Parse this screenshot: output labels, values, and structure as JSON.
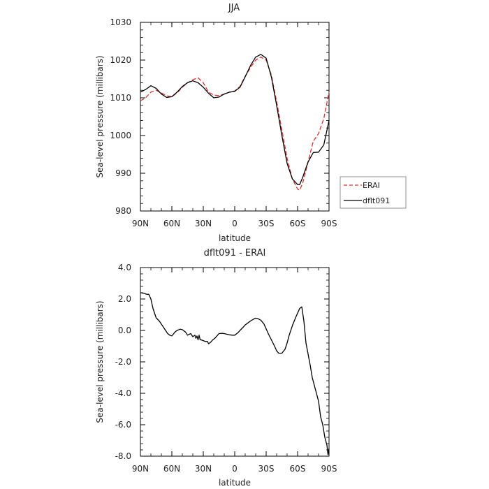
{
  "chart_data": [
    {
      "type": "line",
      "title": "JJA",
      "xlabel": "latitude",
      "ylabel": "Sea-level pressure (millibars)",
      "xlim": [
        90,
        -90
      ],
      "ylim": [
        980,
        1030
      ],
      "x_ticks": [
        90,
        60,
        30,
        0,
        -30,
        -60,
        -90
      ],
      "x_tick_labels": [
        "90N",
        "60N",
        "30N",
        "0",
        "30S",
        "60S",
        "90S"
      ],
      "y_ticks": [
        980,
        990,
        1000,
        1010,
        1020,
        1030
      ],
      "y_tick_labels": [
        "980",
        "990",
        "1000",
        "1010",
        "1020",
        "1030"
      ],
      "grid": false,
      "legend_position": "right, outside plot area",
      "series": [
        {
          "name": "ERAI",
          "color": "#e03030",
          "dash": true,
          "x": [
            90,
            85,
            80,
            75,
            70,
            65,
            60,
            55,
            50,
            45,
            40,
            35,
            30,
            25,
            20,
            15,
            10,
            5,
            0,
            -5,
            -10,
            -15,
            -20,
            -25,
            -30,
            -35,
            -40,
            -45,
            -50,
            -55,
            -60,
            -62,
            -65,
            -70,
            -75,
            -80,
            -85,
            -90
          ],
          "y": [
            1009.2,
            1010.0,
            1011.5,
            1012.0,
            1011.3,
            1010.5,
            1010.3,
            1011.3,
            1012.8,
            1014.0,
            1014.8,
            1015.3,
            1014.0,
            1011.5,
            1010.7,
            1010.6,
            1011.0,
            1011.5,
            1011.8,
            1013.0,
            1015.7,
            1018.0,
            1020.0,
            1020.8,
            1020.0,
            1016.0,
            1009.0,
            1001.5,
            994.0,
            988.5,
            985.8,
            985.5,
            987.5,
            993.0,
            998.5,
            1000.5,
            1004.5,
            1011.5
          ]
        },
        {
          "name": "dflt091",
          "color": "#000000",
          "dash": false,
          "x": [
            90,
            85,
            80,
            75,
            70,
            65,
            60,
            55,
            50,
            45,
            40,
            35,
            30,
            25,
            20,
            15,
            10,
            5,
            0,
            -5,
            -10,
            -15,
            -20,
            -25,
            -30,
            -35,
            -40,
            -45,
            -50,
            -55,
            -60,
            -62,
            -65,
            -70,
            -75,
            -80,
            -85,
            -90
          ],
          "y": [
            1011.5,
            1012.2,
            1013.2,
            1012.5,
            1011.0,
            1010.1,
            1010.3,
            1011.5,
            1013.0,
            1014.0,
            1014.5,
            1014.0,
            1012.8,
            1011.2,
            1010.0,
            1010.2,
            1011.0,
            1011.5,
            1011.7,
            1012.8,
            1015.6,
            1018.5,
            1020.8,
            1021.5,
            1020.5,
            1015.5,
            1008.0,
            1000.0,
            992.6,
            988.5,
            987.0,
            987.0,
            989.0,
            993.0,
            995.5,
            995.6,
            997.5,
            1004.0
          ]
        }
      ]
    },
    {
      "type": "line",
      "title": "dflt091 - ERAI",
      "xlabel": "latitude",
      "ylabel": "Sea-level pressure (millibars)",
      "xlim": [
        90,
        -90
      ],
      "ylim": [
        -8,
        4
      ],
      "x_ticks": [
        90,
        60,
        30,
        0,
        -30,
        -60,
        -90
      ],
      "x_tick_labels": [
        "90N",
        "60N",
        "30N",
        "0",
        "30S",
        "60S",
        "90S"
      ],
      "y_ticks": [
        -8,
        -6,
        -4,
        -2,
        0,
        2,
        4
      ],
      "y_tick_labels": [
        "-8.0",
        "-6.0",
        "-4.0",
        "-2.0",
        "0.0",
        "2.0",
        "4.0"
      ],
      "grid": false,
      "series": [
        {
          "name": "",
          "color": "#000000",
          "x": [
            90,
            86,
            84,
            82,
            80,
            78,
            75,
            72,
            70,
            68,
            66,
            64,
            62,
            60,
            57,
            55,
            52,
            50,
            47,
            45,
            42,
            40,
            38,
            37,
            36,
            35,
            34,
            33,
            32,
            30,
            28,
            26,
            25,
            23,
            21,
            19,
            17,
            15,
            12,
            10,
            7,
            5,
            2,
            0,
            -3,
            -5,
            -8,
            -10,
            -13,
            -15,
            -18,
            -20,
            -22,
            -25,
            -28,
            -30,
            -32,
            -35,
            -38,
            -40,
            -42,
            -45,
            -48,
            -50,
            -52,
            -55,
            -58,
            -60,
            -62,
            -64,
            -66,
            -68,
            -70,
            -72,
            -74,
            -76,
            -78,
            -80,
            -82,
            -84,
            -86,
            -88,
            -89,
            -90
          ],
          "y": [
            2.4,
            2.35,
            2.3,
            2.3,
            2.0,
            1.4,
            0.8,
            0.6,
            0.4,
            0.2,
            0.0,
            -0.2,
            -0.3,
            -0.35,
            -0.1,
            0.0,
            0.08,
            0.05,
            -0.1,
            -0.3,
            -0.2,
            -0.4,
            -0.3,
            -0.5,
            -0.35,
            -0.6,
            -0.3,
            -0.6,
            -0.6,
            -0.65,
            -0.7,
            -0.7,
            -0.85,
            -0.75,
            -0.6,
            -0.5,
            -0.35,
            -0.2,
            -0.18,
            -0.2,
            -0.25,
            -0.28,
            -0.3,
            -0.3,
            -0.15,
            0.0,
            0.2,
            0.35,
            0.5,
            0.6,
            0.72,
            0.78,
            0.75,
            0.65,
            0.4,
            0.1,
            -0.2,
            -0.6,
            -1.0,
            -1.3,
            -1.45,
            -1.45,
            -1.2,
            -0.8,
            -0.3,
            0.3,
            0.8,
            1.1,
            1.4,
            1.5,
            0.6,
            -0.8,
            -1.5,
            -2.2,
            -3.0,
            -3.5,
            -4.0,
            -4.5,
            -5.5,
            -6.0,
            -6.8,
            -7.3,
            -7.9,
            -7.5
          ]
        }
      ]
    }
  ]
}
